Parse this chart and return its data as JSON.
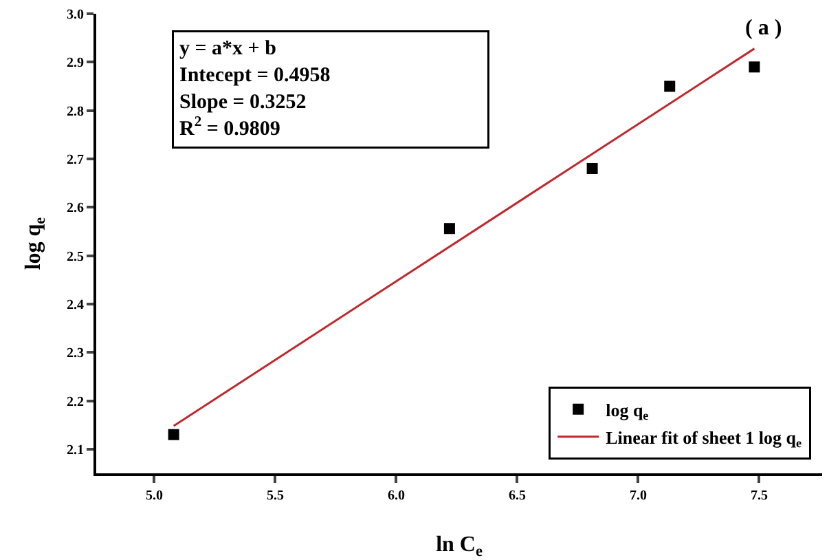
{
  "chart_data": {
    "type": "scatter",
    "xlabel": "ln C$_{e}$",
    "ylabel": "log q$_{e}$",
    "xlim": [
      4.76,
      7.76
    ],
    "xticks": [
      {
        "value": 5,
        "label": "5.0"
      },
      5.5,
      {
        "value": 6,
        "label": "6.0"
      },
      6.5,
      {
        "value": 7,
        "label": "7.0"
      },
      7.5
    ],
    "ylim": [
      2.05,
      3.0
    ],
    "yticks": [
      2.1,
      2.2,
      2.3,
      2.4,
      2.5,
      2.6,
      2.7,
      2.8,
      2.9,
      {
        "value": 3,
        "label": "3.0"
      }
    ],
    "x": [
      5.08,
      6.22,
      6.81,
      7.13,
      7.48
    ],
    "series": [
      {
        "name": "log q$_{e}$",
        "color": "#000000",
        "marker": "square",
        "values": [
          2.13,
          2.556,
          2.68,
          2.85,
          2.89
        ]
      },
      {
        "name": "Linear fit of sheet 1 log q$_{e}$",
        "type": "line",
        "color": "#c0282d",
        "x": [
          5.08,
          7.48
        ],
        "values": [
          2.148,
          2.928
        ],
        "marker": "none"
      }
    ],
    "annotations": [
      "y = a*x + b",
      "Intecept = 0.4958",
      "Slope = 0.3252",
      "R$^{2}$ = 0.9809",
      "( a )"
    ],
    "legend": "bottom right"
  }
}
